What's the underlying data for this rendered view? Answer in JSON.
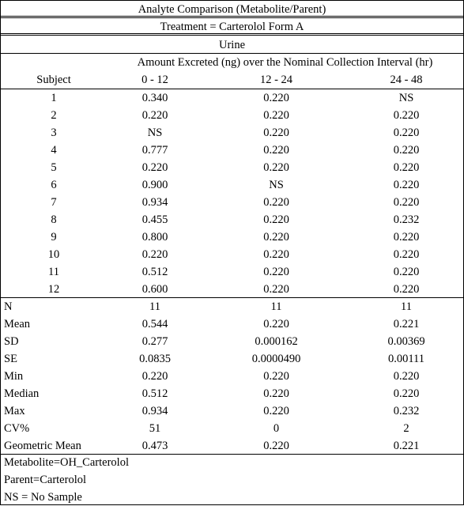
{
  "header": {
    "title": "Analyte Comparison (Metabolite/Parent)",
    "treatment": "Treatment = Carterolol Form A",
    "matrix": "Urine",
    "measure": "Amount Excreted (ng) over the Nominal Collection Interval (hr)"
  },
  "columns": {
    "subject": "Subject",
    "intervals": [
      "0 - 12",
      "12 - 24",
      "24 - 48"
    ]
  },
  "subjects": [
    {
      "id": "1",
      "v": [
        "0.340",
        "0.220",
        "NS"
      ]
    },
    {
      "id": "2",
      "v": [
        "0.220",
        "0.220",
        "0.220"
      ]
    },
    {
      "id": "3",
      "v": [
        "NS",
        "0.220",
        "0.220"
      ]
    },
    {
      "id": "4",
      "v": [
        "0.777",
        "0.220",
        "0.220"
      ]
    },
    {
      "id": "5",
      "v": [
        "0.220",
        "0.220",
        "0.220"
      ]
    },
    {
      "id": "6",
      "v": [
        "0.900",
        "NS",
        "0.220"
      ]
    },
    {
      "id": "7",
      "v": [
        "0.934",
        "0.220",
        "0.220"
      ]
    },
    {
      "id": "8",
      "v": [
        "0.455",
        "0.220",
        "0.232"
      ]
    },
    {
      "id": "9",
      "v": [
        "0.800",
        "0.220",
        "0.220"
      ]
    },
    {
      "id": "10",
      "v": [
        "0.220",
        "0.220",
        "0.220"
      ]
    },
    {
      "id": "11",
      "v": [
        "0.512",
        "0.220",
        "0.220"
      ]
    },
    {
      "id": "12",
      "v": [
        "0.600",
        "0.220",
        "0.220"
      ]
    }
  ],
  "stats": [
    {
      "label": "N",
      "v": [
        "11",
        "11",
        "11"
      ]
    },
    {
      "label": "Mean",
      "v": [
        "0.544",
        "0.220",
        "0.221"
      ]
    },
    {
      "label": "SD",
      "v": [
        "0.277",
        "0.000162",
        "0.00369"
      ]
    },
    {
      "label": "SE",
      "v": [
        "0.0835",
        "0.0000490",
        "0.00111"
      ]
    },
    {
      "label": "Min",
      "v": [
        "0.220",
        "0.220",
        "0.220"
      ]
    },
    {
      "label": "Median",
      "v": [
        "0.512",
        "0.220",
        "0.220"
      ]
    },
    {
      "label": "Max",
      "v": [
        "0.934",
        "0.220",
        "0.232"
      ]
    },
    {
      "label": "CV%",
      "v": [
        "51",
        "0",
        "2"
      ]
    },
    {
      "label": "Geometric Mean",
      "v": [
        "0.473",
        "0.220",
        "0.221"
      ]
    }
  ],
  "footnotes": [
    "Metabolite=OH_Carterolol",
    "Parent=Carterolol",
    "NS = No Sample"
  ]
}
